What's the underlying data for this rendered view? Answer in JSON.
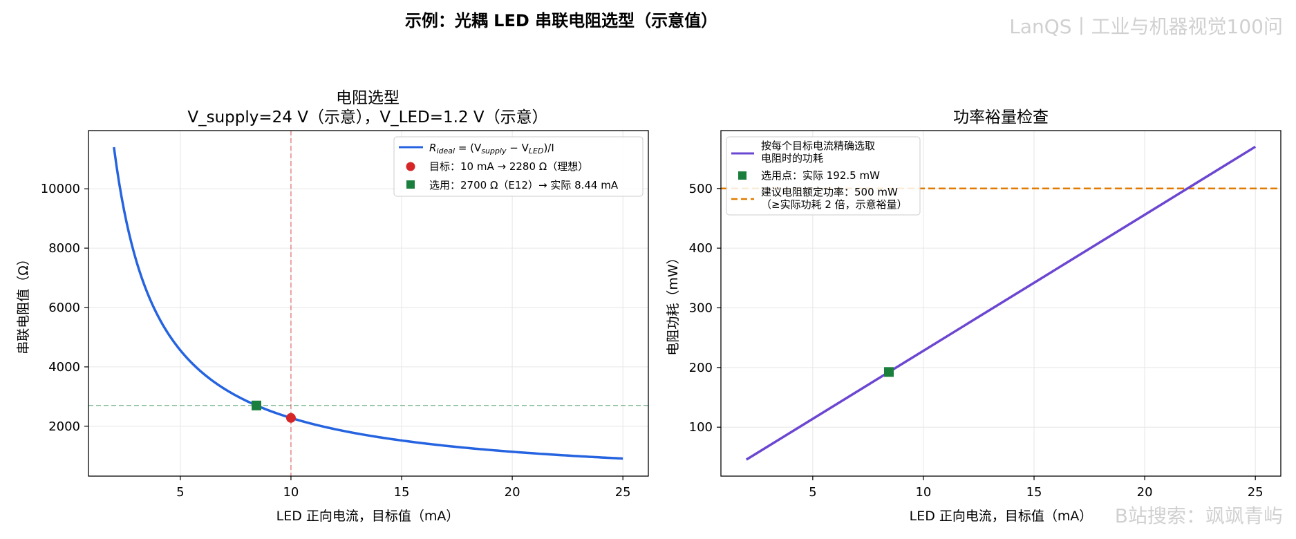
{
  "suptitle": "示例：光耦 LED 串联电阻选型（示意值）",
  "watermarks": {
    "top_right": "LanQS丨工业与机器视觉100问",
    "bottom_right": "B站搜索：飒飒青屿"
  },
  "colors": {
    "curve_blue": "#2563e0",
    "target_red": "#d62728",
    "chosen_green": "#1a7f3c",
    "power_purple": "#6b46d1",
    "rating_orange": "#e07b00"
  },
  "chart_data": [
    {
      "type": "line",
      "title": "电阻选型\nV_supply=24 V（示意），V_LED=1.2 V（示意）",
      "title_lines": [
        "电阻选型",
        "V_supply=24 V（示意），V_LED=1.2 V（示意）"
      ],
      "xlabel": "LED 正向电流，目标值（mA）",
      "ylabel": "串联电阻值（Ω）",
      "xlim": [
        0.85,
        26.15
      ],
      "ylim": [
        320,
        11960
      ],
      "xticks": [
        5,
        10,
        15,
        20,
        25
      ],
      "yticks": [
        2000,
        4000,
        6000,
        8000,
        10000
      ],
      "grid": true,
      "legend_position": "upper right",
      "supply_V": 24,
      "led_V": 1.2,
      "series": [
        {
          "name": "R_ideal = (V_supply − V_LED)/I",
          "kind": "curve",
          "x_range": [
            2,
            25
          ],
          "color": "#2563e0"
        }
      ],
      "points": [
        {
          "name": "目标：10 mA → 2280 Ω（理想）",
          "x": 10,
          "y": 2280,
          "marker": "circle",
          "color": "#d62728"
        },
        {
          "name": "选用：2700 Ω（E12）→ 实际 8.44 mA",
          "x": 8.44,
          "y": 2700,
          "marker": "square",
          "color": "#1a7f3c"
        }
      ],
      "reference_lines": [
        {
          "orientation": "vertical",
          "x": 10,
          "color": "#d62728"
        },
        {
          "orientation": "horizontal",
          "y": 2700,
          "color": "#1a7f3c"
        }
      ],
      "legend": {
        "curve_main": "R",
        "curve_sub": "ideal",
        "curve_rest_a": " = (V",
        "curve_sub2": "supply",
        "curve_rest_b": " − V",
        "curve_sub3": "LED",
        "curve_rest_c": ")/I",
        "target": "目标：10 mA → 2280 Ω（理想）",
        "chosen": "选用：2700 Ω（E12）→ 实际 8.44 mA"
      }
    },
    {
      "type": "line",
      "title": "功率裕量检查",
      "xlabel": "LED 正向电流，目标值（mA）",
      "ylabel": "电阻功耗（mW）",
      "xlim": [
        0.85,
        26.15
      ],
      "ylim": [
        18,
        597
      ],
      "xticks": [
        5,
        10,
        15,
        20,
        25
      ],
      "yticks": [
        100,
        200,
        300,
        400,
        500
      ],
      "grid": true,
      "legend_position": "upper left",
      "series": [
        {
          "name": "按每个目标电流精确选取电阻时的功耗",
          "kind": "line",
          "x": [
            2,
            25
          ],
          "y": [
            45.6,
            570
          ],
          "color": "#6b46d1"
        }
      ],
      "points": [
        {
          "name": "选用点：实际 192.5 mW",
          "x": 8.44,
          "y": 192.5,
          "marker": "square",
          "color": "#1a7f3c"
        }
      ],
      "reference_lines": [
        {
          "orientation": "horizontal",
          "y": 500,
          "name": "建议电阻额定功率：500 mW（≥实际功耗 2 倍，示意裕量）",
          "color": "#e07b00"
        }
      ],
      "legend": {
        "line_1": "按每个目标电流精确选取",
        "line_2": "电阻时的功耗",
        "chosen": "选用点：实际 192.5 mW",
        "rating_1": "建议电阻额定功率：500 mW",
        "rating_2": "（≥实际功耗 2 倍，示意裕量）"
      }
    }
  ]
}
